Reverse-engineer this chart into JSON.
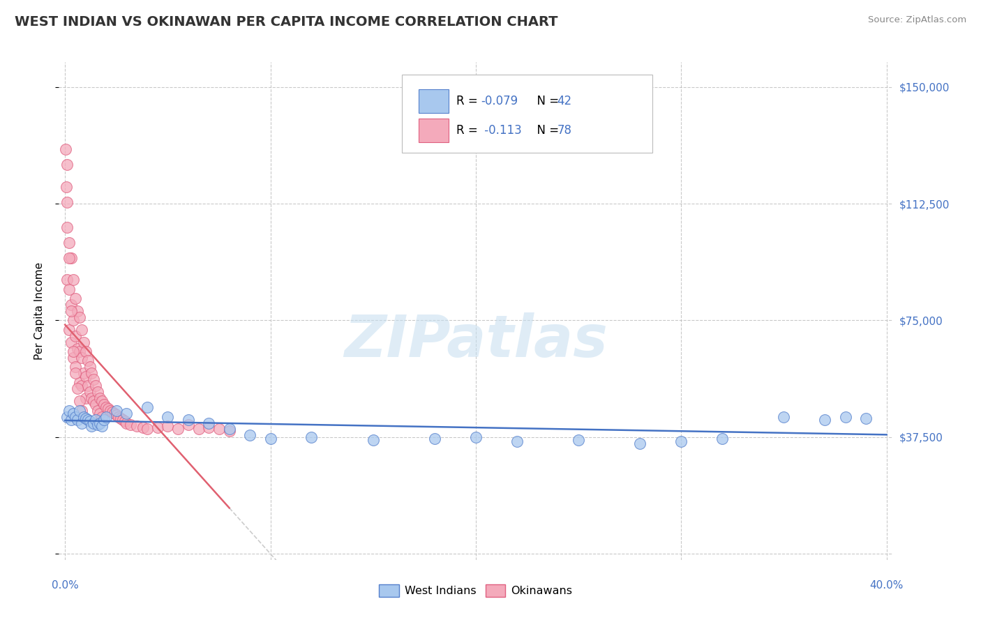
{
  "title": "WEST INDIAN VS OKINAWAN PER CAPITA INCOME CORRELATION CHART",
  "source": "Source: ZipAtlas.com",
  "ylabel": "Per Capita Income",
  "xlim": [
    -0.003,
    0.403
  ],
  "ylim": [
    -2000,
    158000
  ],
  "yticks": [
    0,
    37500,
    75000,
    112500,
    150000
  ],
  "ytick_labels": [
    "",
    "$37,500",
    "$75,000",
    "$112,500",
    "$150,000"
  ],
  "xtick_left": "0.0%",
  "xtick_right": "40.0%",
  "blue_fill": "#A8C8EE",
  "pink_fill": "#F4AABB",
  "blue_edge": "#5580CC",
  "pink_edge": "#E06080",
  "blue_line_color": "#4472C4",
  "pink_line_color": "#E06070",
  "gray_dash_color": "#CCCCCC",
  "grid_color": "#BBBBBB",
  "title_color": "#333333",
  "label_color": "#4472C4",
  "watermark": "ZIPatlas",
  "legend_line1": "R = -0.079   N = 42",
  "legend_line2": "R =  -0.113   N = 78",
  "wi_x": [
    0.001,
    0.002,
    0.003,
    0.004,
    0.005,
    0.006,
    0.007,
    0.008,
    0.009,
    0.01,
    0.011,
    0.012,
    0.013,
    0.014,
    0.015,
    0.016,
    0.017,
    0.018,
    0.019,
    0.02,
    0.025,
    0.03,
    0.04,
    0.05,
    0.06,
    0.07,
    0.08,
    0.09,
    0.1,
    0.12,
    0.15,
    0.18,
    0.2,
    0.22,
    0.25,
    0.28,
    0.3,
    0.32,
    0.35,
    0.37,
    0.38,
    0.39
  ],
  "wi_y": [
    44000,
    46000,
    43000,
    45000,
    44000,
    43000,
    46000,
    42000,
    44000,
    43500,
    43000,
    42500,
    41000,
    42000,
    43000,
    41500,
    42000,
    41000,
    43000,
    44000,
    46000,
    45000,
    47000,
    44000,
    43000,
    42000,
    40000,
    38000,
    37000,
    37500,
    36500,
    37000,
    37500,
    36000,
    36500,
    35500,
    36000,
    37000,
    44000,
    43000,
    44000,
    43500
  ],
  "ok_x": [
    0.0003,
    0.0005,
    0.001,
    0.001,
    0.001,
    0.002,
    0.002,
    0.002,
    0.003,
    0.003,
    0.003,
    0.004,
    0.004,
    0.004,
    0.005,
    0.005,
    0.005,
    0.006,
    0.006,
    0.007,
    0.007,
    0.007,
    0.008,
    0.008,
    0.008,
    0.009,
    0.009,
    0.01,
    0.01,
    0.01,
    0.011,
    0.011,
    0.012,
    0.012,
    0.013,
    0.013,
    0.014,
    0.014,
    0.015,
    0.015,
    0.016,
    0.016,
    0.017,
    0.017,
    0.018,
    0.018,
    0.019,
    0.02,
    0.021,
    0.022,
    0.023,
    0.024,
    0.025,
    0.026,
    0.027,
    0.028,
    0.029,
    0.03,
    0.032,
    0.035,
    0.038,
    0.04,
    0.045,
    0.05,
    0.055,
    0.06,
    0.065,
    0.07,
    0.075,
    0.08,
    0.001,
    0.002,
    0.003,
    0.004,
    0.005,
    0.006,
    0.007,
    0.008
  ],
  "ok_y": [
    130000,
    118000,
    125000,
    105000,
    88000,
    100000,
    85000,
    72000,
    95000,
    80000,
    68000,
    88000,
    75000,
    63000,
    82000,
    70000,
    60000,
    78000,
    66000,
    76000,
    65000,
    55000,
    72000,
    63000,
    54000,
    68000,
    58000,
    65000,
    57000,
    50000,
    62000,
    54000,
    60000,
    52000,
    58000,
    50000,
    56000,
    49000,
    54000,
    48000,
    52000,
    46000,
    50000,
    45000,
    49000,
    44000,
    48000,
    47000,
    46500,
    46000,
    45500,
    45000,
    44500,
    44000,
    43500,
    43000,
    42500,
    42000,
    41500,
    41000,
    40500,
    40000,
    40500,
    41000,
    40000,
    41500,
    40000,
    40500,
    40000,
    39500,
    113000,
    95000,
    78000,
    65000,
    58000,
    53000,
    49000,
    46000
  ]
}
